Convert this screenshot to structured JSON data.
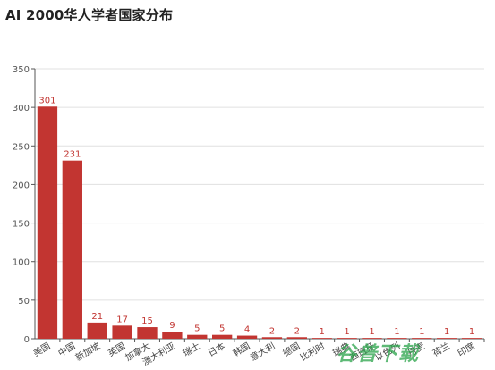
{
  "chart_data": {
    "type": "bar",
    "title": "AI 2000华人学者国家分布",
    "categories": [
      "美国",
      "中国",
      "新加坡",
      "英国",
      "加拿大",
      "澳大利亚",
      "瑞士",
      "日本",
      "韩国",
      "意大利",
      "德国",
      "比利时",
      "瑞典",
      "西班牙",
      "以色列",
      "丹麦",
      "荷兰",
      "印度"
    ],
    "values": [
      301,
      231,
      21,
      17,
      15,
      9,
      5,
      5,
      4,
      2,
      2,
      1,
      1,
      1,
      1,
      1,
      1,
      1
    ],
    "ylim": [
      0,
      350
    ],
    "yticks": [
      0,
      50,
      100,
      150,
      200,
      250,
      300,
      350
    ],
    "xlabel": "",
    "ylabel": "",
    "grid": true,
    "bar_color": "#c23531",
    "label_color": "#c23531"
  },
  "watermark": "谷普下载"
}
